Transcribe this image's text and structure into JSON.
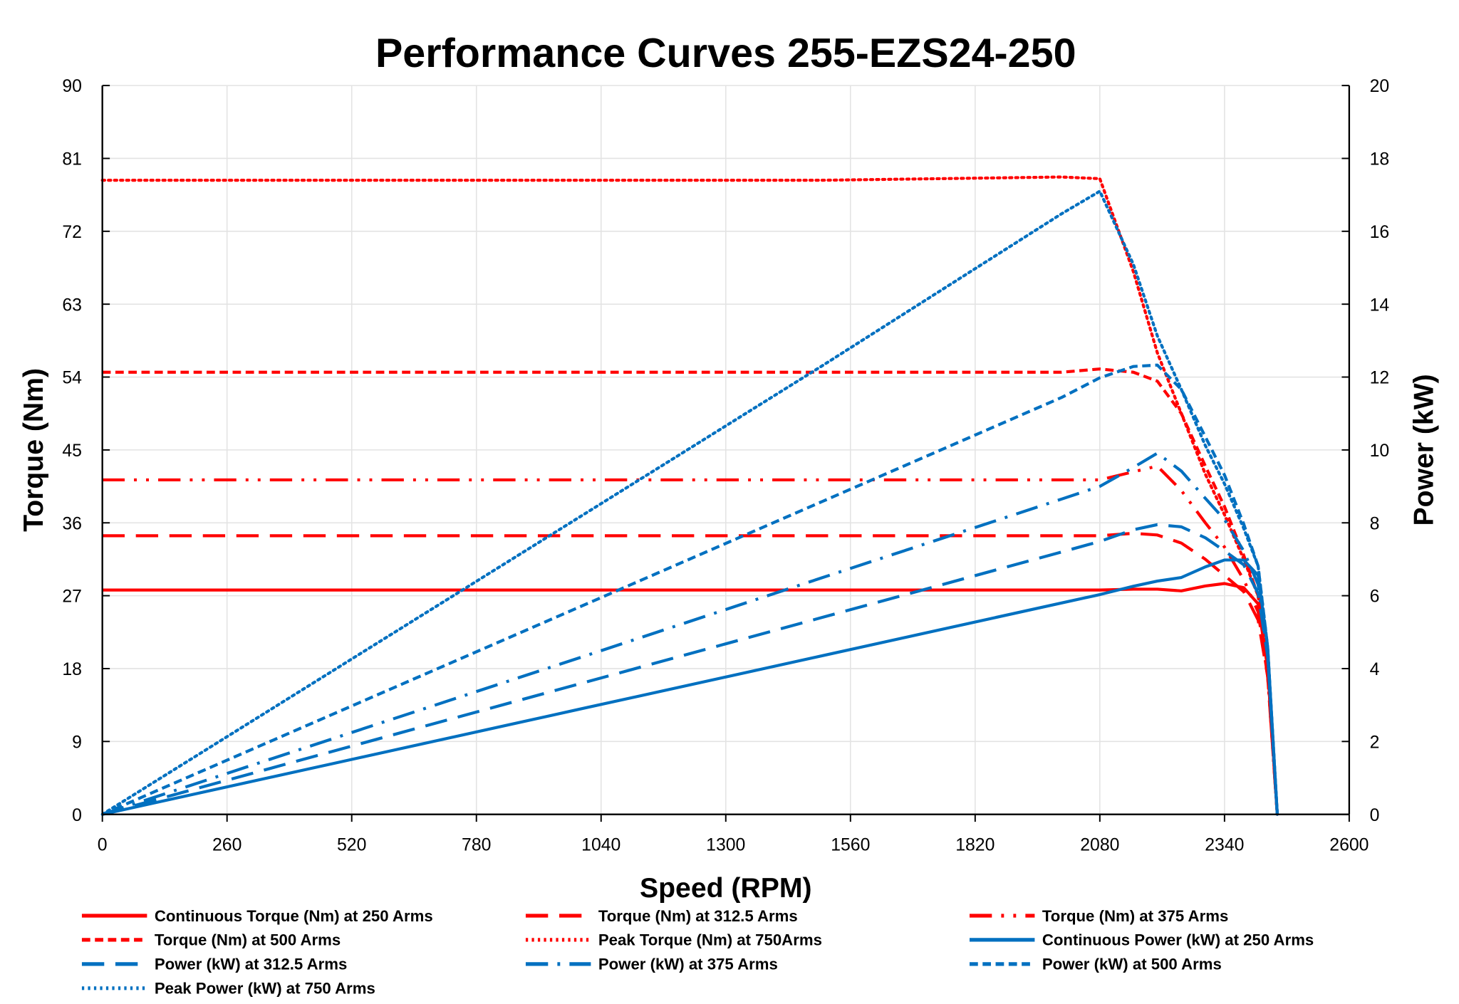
{
  "chart_data": {
    "type": "line",
    "title": "Performance Curves 255-EZS24-250",
    "xlabel": "Speed (RPM)",
    "ylabel": "Torque (Nm)",
    "y2label": "Power (kW)",
    "xlim": [
      0,
      2600
    ],
    "ylim": [
      0,
      90
    ],
    "y2lim": [
      0,
      20
    ],
    "xticks": [
      0,
      260,
      520,
      780,
      1040,
      1300,
      1560,
      1820,
      2080,
      2340,
      2600
    ],
    "yticks": [
      0,
      9,
      18,
      27,
      36,
      45,
      54,
      63,
      72,
      81,
      90
    ],
    "y2ticks": [
      0,
      2,
      4,
      6,
      8,
      10,
      12,
      14,
      16,
      18,
      20
    ],
    "grid": true,
    "legend_position": "bottom",
    "colors": {
      "torque": "#FF0000",
      "power": "#0070C0"
    },
    "x": [
      0,
      500,
      1000,
      1500,
      2000,
      2080,
      2150,
      2200,
      2250,
      2300,
      2340,
      2380,
      2410,
      2430,
      2450
    ],
    "series": [
      {
        "name": "Continuous Torque (Nm) at 250 Arms",
        "axis": "left",
        "color": "#FF0000",
        "style": "solid",
        "values": [
          27.7,
          27.7,
          27.7,
          27.7,
          27.7,
          27.7,
          27.8,
          27.8,
          27.6,
          28.2,
          28.5,
          28.0,
          26.0,
          18.0,
          0
        ]
      },
      {
        "name": "Torque (Nm) at 312.5 Arms",
        "axis": "left",
        "color": "#FF0000",
        "style": "longdash",
        "values": [
          34.4,
          34.4,
          34.4,
          34.4,
          34.4,
          34.4,
          34.7,
          34.5,
          33.5,
          31.5,
          29.5,
          27.5,
          24.0,
          17.0,
          0
        ]
      },
      {
        "name": "Torque (Nm) at 375 Arms",
        "axis": "left",
        "color": "#FF0000",
        "style": "longdashdotdot",
        "values": [
          41.3,
          41.3,
          41.3,
          41.3,
          41.3,
          41.3,
          42.3,
          43.0,
          40.0,
          36.0,
          33.0,
          29.0,
          25.0,
          17.0,
          0
        ]
      },
      {
        "name": "Torque (Nm) at 500 Arms",
        "axis": "left",
        "color": "#FF0000",
        "style": "dash",
        "values": [
          54.6,
          54.6,
          54.6,
          54.6,
          54.6,
          55.0,
          54.6,
          53.5,
          49.5,
          43.0,
          38.0,
          32.0,
          27.0,
          18.0,
          0
        ]
      },
      {
        "name": "Peak Torque (Nm) at 750Arms",
        "axis": "left",
        "color": "#FF0000",
        "style": "dot",
        "values": [
          78.3,
          78.3,
          78.3,
          78.3,
          78.7,
          78.5,
          67.0,
          57.0,
          49.5,
          42.0,
          37.0,
          31.5,
          27.0,
          18.0,
          0
        ]
      },
      {
        "name": "Continuous Power (kW) at 250 Arms",
        "axis": "right",
        "color": "#0070C0",
        "style": "solid",
        "values": [
          0,
          1.45,
          2.9,
          4.35,
          5.8,
          6.03,
          6.26,
          6.4,
          6.5,
          6.79,
          6.98,
          6.98,
          6.56,
          4.58,
          0
        ]
      },
      {
        "name": "Power (kW) at 312.5 Arms",
        "axis": "right",
        "color": "#0070C0",
        "style": "longdash",
        "values": [
          0,
          1.8,
          3.6,
          5.4,
          7.2,
          7.49,
          7.81,
          7.95,
          7.89,
          7.59,
          7.23,
          6.85,
          6.06,
          4.33,
          0
        ]
      },
      {
        "name": "Power (kW) at 375 Arms",
        "axis": "right",
        "color": "#0070C0",
        "style": "longdashdot",
        "values": [
          0,
          2.16,
          4.32,
          6.49,
          8.65,
          9.0,
          9.52,
          9.91,
          9.42,
          8.67,
          8.09,
          7.23,
          6.31,
          4.33,
          0
        ]
      },
      {
        "name": "Power (kW) at 500 Arms",
        "axis": "right",
        "color": "#0070C0",
        "style": "dash",
        "values": [
          0,
          2.86,
          5.72,
          8.58,
          11.44,
          11.98,
          12.29,
          12.33,
          11.66,
          10.36,
          9.31,
          7.97,
          6.81,
          4.58,
          0
        ]
      },
      {
        "name": "Peak Power (kW) at 750 Arms",
        "axis": "right",
        "color": "#0070C0",
        "style": "dot",
        "values": [
          0,
          4.1,
          8.2,
          12.3,
          16.48,
          17.1,
          15.09,
          13.13,
          11.66,
          10.12,
          9.07,
          7.85,
          6.81,
          4.58,
          0
        ]
      }
    ]
  }
}
